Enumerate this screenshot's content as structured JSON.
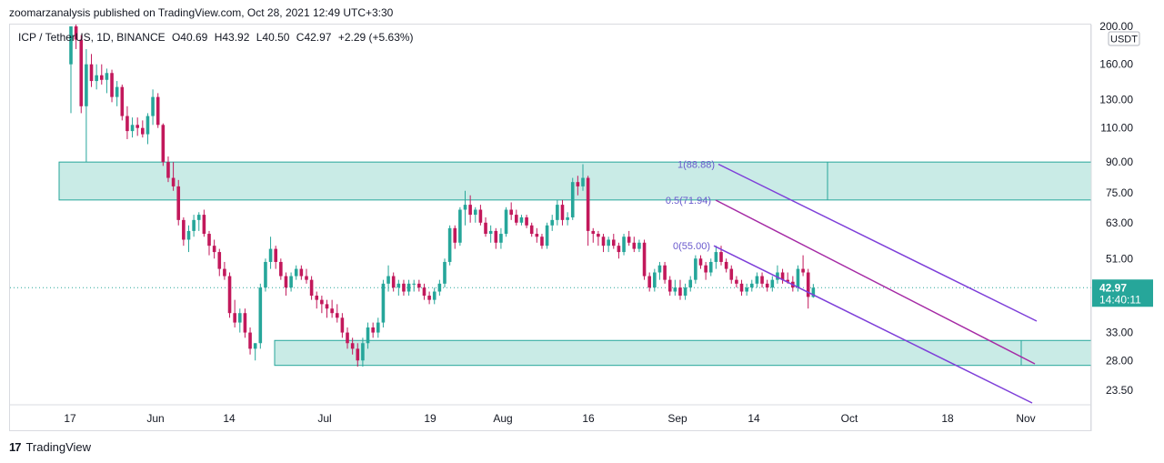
{
  "publisher_line": "zoomarzanalysis published on TradingView.com, Oct 28, 2021 12:49 UTC+3:30",
  "legend": {
    "symbol": "ICP / TetherUS, 1D, BINANCE",
    "open": "O40.69",
    "high": "H43.92",
    "low": "L40.50",
    "close": "C42.97",
    "change": "+2.29 (+5.63%)"
  },
  "currency_badge": "USDT",
  "price_badge": {
    "price": "42.97",
    "countdown": "14:40:11"
  },
  "brand": "TradingView",
  "colors": {
    "up": "#26a69a",
    "down": "#c2185b",
    "zone_fill": "#c9ebe6",
    "zone_border": "#26a69a",
    "channel_outer": "#7e3fd9",
    "channel_mid": "#a52aa5",
    "fib_text": "#6a5acd"
  },
  "chart_data": {
    "type": "candlestick",
    "y_scale": "log",
    "y_ticks": [
      "200.00",
      "160.00",
      "130.00",
      "110.00",
      "90.00",
      "75.00",
      "63.00",
      "51.00",
      "33.00",
      "28.00",
      "23.50"
    ],
    "x_ticks": [
      "17",
      "Jun",
      "14",
      "Jul",
      "19",
      "Aug",
      "16",
      "Sep",
      "14",
      "Oct",
      "18",
      "Nov"
    ],
    "candles": [
      {
        "o": 160,
        "h": 200,
        "l": 120,
        "c": 200
      },
      {
        "o": 200,
        "h": 215,
        "l": 175,
        "c": 185
      },
      {
        "o": 185,
        "h": 190,
        "l": 120,
        "c": 125
      },
      {
        "o": 125,
        "h": 175,
        "l": 90,
        "c": 160
      },
      {
        "o": 160,
        "h": 170,
        "l": 140,
        "c": 145
      },
      {
        "o": 145,
        "h": 160,
        "l": 138,
        "c": 150
      },
      {
        "o": 150,
        "h": 160,
        "l": 142,
        "c": 146
      },
      {
        "o": 146,
        "h": 156,
        "l": 135,
        "c": 152
      },
      {
        "o": 152,
        "h": 155,
        "l": 128,
        "c": 132
      },
      {
        "o": 132,
        "h": 145,
        "l": 125,
        "c": 140
      },
      {
        "o": 140,
        "h": 142,
        "l": 115,
        "c": 118
      },
      {
        "o": 118,
        "h": 125,
        "l": 103,
        "c": 108
      },
      {
        "o": 108,
        "h": 117,
        "l": 104,
        "c": 112
      },
      {
        "o": 112,
        "h": 117,
        "l": 105,
        "c": 110
      },
      {
        "o": 110,
        "h": 115,
        "l": 104,
        "c": 106
      },
      {
        "o": 106,
        "h": 120,
        "l": 100,
        "c": 118
      },
      {
        "o": 118,
        "h": 138,
        "l": 112,
        "c": 132
      },
      {
        "o": 132,
        "h": 135,
        "l": 110,
        "c": 112
      },
      {
        "o": 112,
        "h": 113,
        "l": 88,
        "c": 90
      },
      {
        "o": 90,
        "h": 93,
        "l": 80,
        "c": 82
      },
      {
        "o": 82,
        "h": 90,
        "l": 76,
        "c": 78
      },
      {
        "o": 78,
        "h": 81,
        "l": 62,
        "c": 64
      },
      {
        "o": 64,
        "h": 65,
        "l": 55,
        "c": 57
      },
      {
        "o": 57,
        "h": 62,
        "l": 53,
        "c": 60
      },
      {
        "o": 60,
        "h": 66,
        "l": 58,
        "c": 64
      },
      {
        "o": 64,
        "h": 67,
        "l": 60,
        "c": 66
      },
      {
        "o": 66,
        "h": 68,
        "l": 58,
        "c": 59
      },
      {
        "o": 59,
        "h": 60,
        "l": 52,
        "c": 55
      },
      {
        "o": 55,
        "h": 57,
        "l": 51,
        "c": 53
      },
      {
        "o": 53,
        "h": 54,
        "l": 46,
        "c": 48
      },
      {
        "o": 48,
        "h": 50,
        "l": 45,
        "c": 46
      },
      {
        "o": 46,
        "h": 47,
        "l": 36,
        "c": 37
      },
      {
        "o": 37,
        "h": 40,
        "l": 34,
        "c": 35
      },
      {
        "o": 35,
        "h": 38,
        "l": 33,
        "c": 37
      },
      {
        "o": 37,
        "h": 38,
        "l": 32,
        "c": 33
      },
      {
        "o": 33,
        "h": 34,
        "l": 29,
        "c": 30
      },
      {
        "o": 30,
        "h": 31,
        "l": 28,
        "c": 31
      },
      {
        "o": 31,
        "h": 44,
        "l": 30,
        "c": 43
      },
      {
        "o": 43,
        "h": 51,
        "l": 42,
        "c": 50
      },
      {
        "o": 50,
        "h": 58,
        "l": 48,
        "c": 54
      },
      {
        "o": 54,
        "h": 55,
        "l": 48,
        "c": 50
      },
      {
        "o": 50,
        "h": 51,
        "l": 45,
        "c": 46
      },
      {
        "o": 46,
        "h": 47,
        "l": 41,
        "c": 43
      },
      {
        "o": 43,
        "h": 47,
        "l": 42,
        "c": 46
      },
      {
        "o": 46,
        "h": 49,
        "l": 45,
        "c": 48
      },
      {
        "o": 48,
        "h": 49,
        "l": 45,
        "c": 46
      },
      {
        "o": 46,
        "h": 48,
        "l": 44,
        "c": 45
      },
      {
        "o": 45,
        "h": 46,
        "l": 40,
        "c": 41
      },
      {
        "o": 41,
        "h": 42,
        "l": 38,
        "c": 40
      },
      {
        "o": 40,
        "h": 41,
        "l": 37,
        "c": 39
      },
      {
        "o": 39,
        "h": 40,
        "l": 36,
        "c": 38
      },
      {
        "o": 38,
        "h": 40,
        "l": 36,
        "c": 37
      },
      {
        "o": 37,
        "h": 39,
        "l": 35,
        "c": 36
      },
      {
        "o": 36,
        "h": 37,
        "l": 32,
        "c": 33
      },
      {
        "o": 33,
        "h": 34,
        "l": 30,
        "c": 31
      },
      {
        "o": 31,
        "h": 32,
        "l": 29,
        "c": 30
      },
      {
        "o": 30,
        "h": 31,
        "l": 27,
        "c": 28
      },
      {
        "o": 28,
        "h": 32,
        "l": 27,
        "c": 31
      },
      {
        "o": 31,
        "h": 35,
        "l": 30,
        "c": 34
      },
      {
        "o": 34,
        "h": 35,
        "l": 32,
        "c": 33
      },
      {
        "o": 33,
        "h": 36,
        "l": 32,
        "c": 35
      },
      {
        "o": 35,
        "h": 45,
        "l": 34,
        "c": 44
      },
      {
        "o": 44,
        "h": 49,
        "l": 42,
        "c": 46
      },
      {
        "o": 46,
        "h": 47,
        "l": 42,
        "c": 43
      },
      {
        "o": 43,
        "h": 45,
        "l": 41,
        "c": 44
      },
      {
        "o": 44,
        "h": 45,
        "l": 41,
        "c": 42
      },
      {
        "o": 42,
        "h": 45,
        "l": 41,
        "c": 44
      },
      {
        "o": 44,
        "h": 45,
        "l": 42,
        "c": 44
      },
      {
        "o": 44,
        "h": 45,
        "l": 42,
        "c": 43
      },
      {
        "o": 43,
        "h": 44,
        "l": 40,
        "c": 41
      },
      {
        "o": 41,
        "h": 42,
        "l": 39,
        "c": 40
      },
      {
        "o": 40,
        "h": 43,
        "l": 39,
        "c": 42
      },
      {
        "o": 42,
        "h": 45,
        "l": 41,
        "c": 44
      },
      {
        "o": 44,
        "h": 51,
        "l": 43,
        "c": 50
      },
      {
        "o": 50,
        "h": 62,
        "l": 49,
        "c": 61
      },
      {
        "o": 61,
        "h": 62,
        "l": 54,
        "c": 56
      },
      {
        "o": 56,
        "h": 69,
        "l": 55,
        "c": 68
      },
      {
        "o": 68,
        "h": 76,
        "l": 62,
        "c": 70
      },
      {
        "o": 70,
        "h": 74,
        "l": 63,
        "c": 66
      },
      {
        "o": 66,
        "h": 69,
        "l": 63,
        "c": 68
      },
      {
        "o": 68,
        "h": 70,
        "l": 62,
        "c": 63
      },
      {
        "o": 63,
        "h": 65,
        "l": 58,
        "c": 59
      },
      {
        "o": 59,
        "h": 62,
        "l": 56,
        "c": 60
      },
      {
        "o": 60,
        "h": 61,
        "l": 54,
        "c": 56
      },
      {
        "o": 56,
        "h": 61,
        "l": 54,
        "c": 59
      },
      {
        "o": 59,
        "h": 69,
        "l": 58,
        "c": 68
      },
      {
        "o": 68,
        "h": 71,
        "l": 64,
        "c": 66
      },
      {
        "o": 66,
        "h": 68,
        "l": 62,
        "c": 63
      },
      {
        "o": 63,
        "h": 66,
        "l": 62,
        "c": 65
      },
      {
        "o": 65,
        "h": 66,
        "l": 61,
        "c": 62
      },
      {
        "o": 62,
        "h": 63,
        "l": 58,
        "c": 59
      },
      {
        "o": 59,
        "h": 61,
        "l": 56,
        "c": 58
      },
      {
        "o": 58,
        "h": 59,
        "l": 54,
        "c": 55
      },
      {
        "o": 55,
        "h": 63,
        "l": 54,
        "c": 62
      },
      {
        "o": 62,
        "h": 66,
        "l": 60,
        "c": 64
      },
      {
        "o": 64,
        "h": 72,
        "l": 62,
        "c": 70
      },
      {
        "o": 70,
        "h": 72,
        "l": 62,
        "c": 64
      },
      {
        "o": 64,
        "h": 67,
        "l": 62,
        "c": 65
      },
      {
        "o": 65,
        "h": 82,
        "l": 64,
        "c": 80
      },
      {
        "o": 80,
        "h": 83,
        "l": 74,
        "c": 78
      },
      {
        "o": 78,
        "h": 88.88,
        "l": 76,
        "c": 82
      },
      {
        "o": 82,
        "h": 83,
        "l": 55,
        "c": 60
      },
      {
        "o": 60,
        "h": 61,
        "l": 56,
        "c": 59
      },
      {
        "o": 59,
        "h": 60,
        "l": 55,
        "c": 58
      },
      {
        "o": 58,
        "h": 59,
        "l": 53,
        "c": 55
      },
      {
        "o": 55,
        "h": 58,
        "l": 53,
        "c": 57
      },
      {
        "o": 57,
        "h": 59,
        "l": 54,
        "c": 55
      },
      {
        "o": 55,
        "h": 56,
        "l": 51,
        "c": 53
      },
      {
        "o": 53,
        "h": 59,
        "l": 52,
        "c": 58
      },
      {
        "o": 58,
        "h": 60,
        "l": 55,
        "c": 56
      },
      {
        "o": 56,
        "h": 58,
        "l": 53,
        "c": 54
      },
      {
        "o": 54,
        "h": 57,
        "l": 53,
        "c": 56
      },
      {
        "o": 56,
        "h": 57,
        "l": 45,
        "c": 46
      },
      {
        "o": 46,
        "h": 47,
        "l": 42,
        "c": 43
      },
      {
        "o": 43,
        "h": 48,
        "l": 42,
        "c": 47
      },
      {
        "o": 47,
        "h": 50,
        "l": 45,
        "c": 49
      },
      {
        "o": 49,
        "h": 50,
        "l": 44,
        "c": 45
      },
      {
        "o": 45,
        "h": 46,
        "l": 41,
        "c": 42
      },
      {
        "o": 42,
        "h": 45,
        "l": 41,
        "c": 43
      },
      {
        "o": 43,
        "h": 45,
        "l": 40,
        "c": 41
      },
      {
        "o": 41,
        "h": 44,
        "l": 40,
        "c": 43
      },
      {
        "o": 43,
        "h": 46,
        "l": 42,
        "c": 45
      },
      {
        "o": 45,
        "h": 52,
        "l": 44,
        "c": 51
      },
      {
        "o": 51,
        "h": 52,
        "l": 48,
        "c": 49
      },
      {
        "o": 49,
        "h": 50,
        "l": 45,
        "c": 47
      },
      {
        "o": 47,
        "h": 51,
        "l": 46,
        "c": 50
      },
      {
        "o": 50,
        "h": 55,
        "l": 48,
        "c": 53
      },
      {
        "o": 53,
        "h": 55,
        "l": 49,
        "c": 50
      },
      {
        "o": 50,
        "h": 51,
        "l": 47,
        "c": 48
      },
      {
        "o": 48,
        "h": 49,
        "l": 44,
        "c": 45
      },
      {
        "o": 45,
        "h": 46,
        "l": 43,
        "c": 44
      },
      {
        "o": 44,
        "h": 45,
        "l": 41,
        "c": 42
      },
      {
        "o": 42,
        "h": 44,
        "l": 41,
        "c": 43
      },
      {
        "o": 43,
        "h": 45,
        "l": 42,
        "c": 44
      },
      {
        "o": 44,
        "h": 47,
        "l": 43,
        "c": 46
      },
      {
        "o": 46,
        "h": 47,
        "l": 43,
        "c": 44
      },
      {
        "o": 44,
        "h": 45,
        "l": 42,
        "c": 43
      },
      {
        "o": 43,
        "h": 46,
        "l": 42,
        "c": 45
      },
      {
        "o": 45,
        "h": 49,
        "l": 44,
        "c": 47
      },
      {
        "o": 47,
        "h": 48,
        "l": 44,
        "c": 45
      },
      {
        "o": 45,
        "h": 47,
        "l": 44,
        "c": 44.5
      },
      {
        "o": 44.5,
        "h": 46,
        "l": 42,
        "c": 43
      },
      {
        "o": 43,
        "h": 49,
        "l": 42,
        "c": 48
      },
      {
        "o": 48,
        "h": 52,
        "l": 46,
        "c": 47
      },
      {
        "o": 47,
        "h": 48,
        "l": 38,
        "c": 40.7
      },
      {
        "o": 40.69,
        "h": 43.92,
        "l": 40.5,
        "c": 42.97
      }
    ],
    "zones": [
      {
        "top": 90,
        "bottom": 72
      },
      {
        "top": 31.5,
        "bottom": 27.2
      }
    ],
    "channel": {
      "outer_top_label": "1(88.88)",
      "outer_bottom_label": "0(55.00)",
      "mid_label": "0.5(71.94)"
    }
  }
}
